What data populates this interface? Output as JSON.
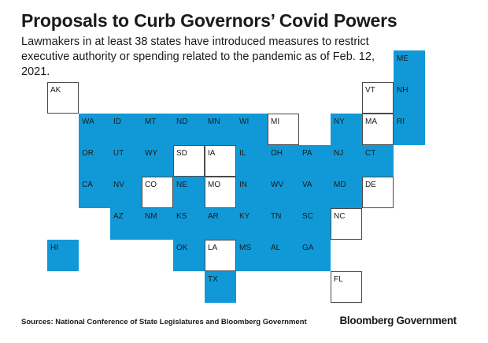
{
  "title": "Proposals to Curb Governors’ Covid Powers",
  "subtitle": "Lawmakers in at least 38 states have introduced measures to restrict executive authority or spending related to the pandemic as of Feb. 12, 2021.",
  "footer": {
    "source": "Sources: National Conference of State Legislatures and Bloomberg Government",
    "brand": "Bloomberg Government"
  },
  "colors": {
    "proposed": "#1199d7",
    "none": "#ffffff",
    "border": "#4a4a4a"
  },
  "chart_data": {
    "type": "tile-map",
    "states": [
      {
        "abbr": "AK",
        "col": 0,
        "row": 0,
        "proposed": false
      },
      {
        "abbr": "VT",
        "col": 10,
        "row": 0,
        "proposed": false
      },
      {
        "abbr": "ME",
        "col": 11,
        "row": -1,
        "proposed": true
      },
      {
        "abbr": "NH",
        "col": 11,
        "row": 0,
        "proposed": true
      },
      {
        "abbr": "WA",
        "col": 1,
        "row": 1,
        "proposed": true
      },
      {
        "abbr": "ID",
        "col": 2,
        "row": 1,
        "proposed": true
      },
      {
        "abbr": "MT",
        "col": 3,
        "row": 1,
        "proposed": true
      },
      {
        "abbr": "ND",
        "col": 4,
        "row": 1,
        "proposed": true
      },
      {
        "abbr": "MN",
        "col": 5,
        "row": 1,
        "proposed": true
      },
      {
        "abbr": "WI",
        "col": 6,
        "row": 1,
        "proposed": true
      },
      {
        "abbr": "MI",
        "col": 7,
        "row": 1,
        "proposed": false
      },
      {
        "abbr": "NY",
        "col": 9,
        "row": 1,
        "proposed": true
      },
      {
        "abbr": "MA",
        "col": 10,
        "row": 1,
        "proposed": false
      },
      {
        "abbr": "RI",
        "col": 11,
        "row": 1,
        "proposed": true
      },
      {
        "abbr": "OR",
        "col": 1,
        "row": 2,
        "proposed": true
      },
      {
        "abbr": "UT",
        "col": 2,
        "row": 2,
        "proposed": true
      },
      {
        "abbr": "WY",
        "col": 3,
        "row": 2,
        "proposed": true
      },
      {
        "abbr": "SD",
        "col": 4,
        "row": 2,
        "proposed": false
      },
      {
        "abbr": "IA",
        "col": 5,
        "row": 2,
        "proposed": false
      },
      {
        "abbr": "IL",
        "col": 6,
        "row": 2,
        "proposed": true
      },
      {
        "abbr": "OH",
        "col": 7,
        "row": 2,
        "proposed": true
      },
      {
        "abbr": "PA",
        "col": 8,
        "row": 2,
        "proposed": true
      },
      {
        "abbr": "NJ",
        "col": 9,
        "row": 2,
        "proposed": true
      },
      {
        "abbr": "CT",
        "col": 10,
        "row": 2,
        "proposed": true
      },
      {
        "abbr": "CA",
        "col": 1,
        "row": 3,
        "proposed": true
      },
      {
        "abbr": "NV",
        "col": 2,
        "row": 3,
        "proposed": true
      },
      {
        "abbr": "CO",
        "col": 3,
        "row": 3,
        "proposed": false
      },
      {
        "abbr": "NE",
        "col": 4,
        "row": 3,
        "proposed": true
      },
      {
        "abbr": "MO",
        "col": 5,
        "row": 3,
        "proposed": false
      },
      {
        "abbr": "IN",
        "col": 6,
        "row": 3,
        "proposed": true
      },
      {
        "abbr": "WV",
        "col": 7,
        "row": 3,
        "proposed": true
      },
      {
        "abbr": "VA",
        "col": 8,
        "row": 3,
        "proposed": true
      },
      {
        "abbr": "MD",
        "col": 9,
        "row": 3,
        "proposed": true
      },
      {
        "abbr": "DE",
        "col": 10,
        "row": 3,
        "proposed": false
      },
      {
        "abbr": "AZ",
        "col": 2,
        "row": 4,
        "proposed": true
      },
      {
        "abbr": "NM",
        "col": 3,
        "row": 4,
        "proposed": true
      },
      {
        "abbr": "KS",
        "col": 4,
        "row": 4,
        "proposed": true
      },
      {
        "abbr": "AR",
        "col": 5,
        "row": 4,
        "proposed": true
      },
      {
        "abbr": "KY",
        "col": 6,
        "row": 4,
        "proposed": true
      },
      {
        "abbr": "TN",
        "col": 7,
        "row": 4,
        "proposed": true
      },
      {
        "abbr": "SC",
        "col": 8,
        "row": 4,
        "proposed": true
      },
      {
        "abbr": "NC",
        "col": 9,
        "row": 4,
        "proposed": false
      },
      {
        "abbr": "HI",
        "col": 0,
        "row": 5,
        "proposed": true
      },
      {
        "abbr": "OK",
        "col": 4,
        "row": 5,
        "proposed": true
      },
      {
        "abbr": "LA",
        "col": 5,
        "row": 5,
        "proposed": false
      },
      {
        "abbr": "MS",
        "col": 6,
        "row": 5,
        "proposed": true
      },
      {
        "abbr": "AL",
        "col": 7,
        "row": 5,
        "proposed": true
      },
      {
        "abbr": "GA",
        "col": 8,
        "row": 5,
        "proposed": true
      },
      {
        "abbr": "TX",
        "col": 5,
        "row": 6,
        "proposed": true
      },
      {
        "abbr": "FL",
        "col": 9,
        "row": 6,
        "proposed": false
      }
    ]
  }
}
